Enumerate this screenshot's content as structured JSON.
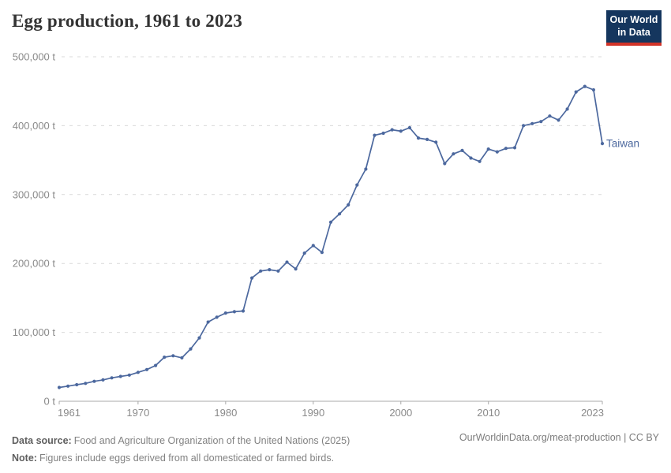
{
  "header": {
    "title": "Egg production, 1961 to 2023",
    "logo": {
      "line1": "Our World",
      "line2": "in Data",
      "bg_color": "#15365e",
      "accent_color": "#d13328"
    }
  },
  "chart_data": {
    "type": "line",
    "title": "Egg production, 1961 to 2023",
    "unit": "t",
    "xlim": [
      1961,
      2023
    ],
    "ylim": [
      0,
      500000
    ],
    "grid": "horizontal-dashed",
    "legend": "end-of-line-label",
    "x_ticks": [
      1961,
      1970,
      1980,
      1990,
      2000,
      2010,
      2023
    ],
    "y_ticks": [
      {
        "value": 0,
        "label": "0 t"
      },
      {
        "value": 100000,
        "label": "100,000 t"
      },
      {
        "value": 200000,
        "label": "200,000 t"
      },
      {
        "value": 300000,
        "label": "300,000 t"
      },
      {
        "value": 400000,
        "label": "400,000 t"
      },
      {
        "value": 500000,
        "label": "500,000 t"
      }
    ],
    "x": [
      1961,
      1962,
      1963,
      1964,
      1965,
      1966,
      1967,
      1968,
      1969,
      1970,
      1971,
      1972,
      1973,
      1974,
      1975,
      1976,
      1977,
      1978,
      1979,
      1980,
      1981,
      1982,
      1983,
      1984,
      1985,
      1986,
      1987,
      1988,
      1989,
      1990,
      1991,
      1992,
      1993,
      1994,
      1995,
      1996,
      1997,
      1998,
      1999,
      2000,
      2001,
      2002,
      2003,
      2004,
      2005,
      2006,
      2007,
      2008,
      2009,
      2010,
      2011,
      2012,
      2013,
      2014,
      2015,
      2016,
      2017,
      2018,
      2019,
      2020,
      2021,
      2022,
      2023
    ],
    "series": [
      {
        "name": "Taiwan",
        "color": "#4c689e",
        "values": [
          20000,
          22000,
          24000,
          26000,
          29000,
          31000,
          34000,
          36000,
          38000,
          42000,
          46000,
          52000,
          64000,
          66000,
          63000,
          76000,
          92000,
          115000,
          122000,
          128000,
          130000,
          131000,
          179000,
          189000,
          191000,
          189000,
          202000,
          192000,
          215000,
          226000,
          216000,
          260000,
          272000,
          285000,
          314000,
          337000,
          386000,
          389000,
          394000,
          392000,
          397000,
          382000,
          380000,
          376000,
          345000,
          359000,
          364000,
          353000,
          348000,
          366000,
          362000,
          367000,
          368000,
          400000,
          403000,
          406000,
          414000,
          408000,
          424000,
          449000,
          457000,
          452000,
          374000
        ]
      }
    ],
    "colors": {
      "gridline": "#d9d9d9",
      "axis": "#a8a8a8",
      "tick_label": "#8a8a8a"
    }
  },
  "footer": {
    "source_label": "Data source:",
    "source_text": "Food and Agriculture Organization of the United Nations (2025)",
    "note_label": "Note:",
    "note_text": "Figures include eggs derived from all domesticated or farmed birds.",
    "link_text": "OurWorldinData.org/meat-production | CC BY"
  }
}
